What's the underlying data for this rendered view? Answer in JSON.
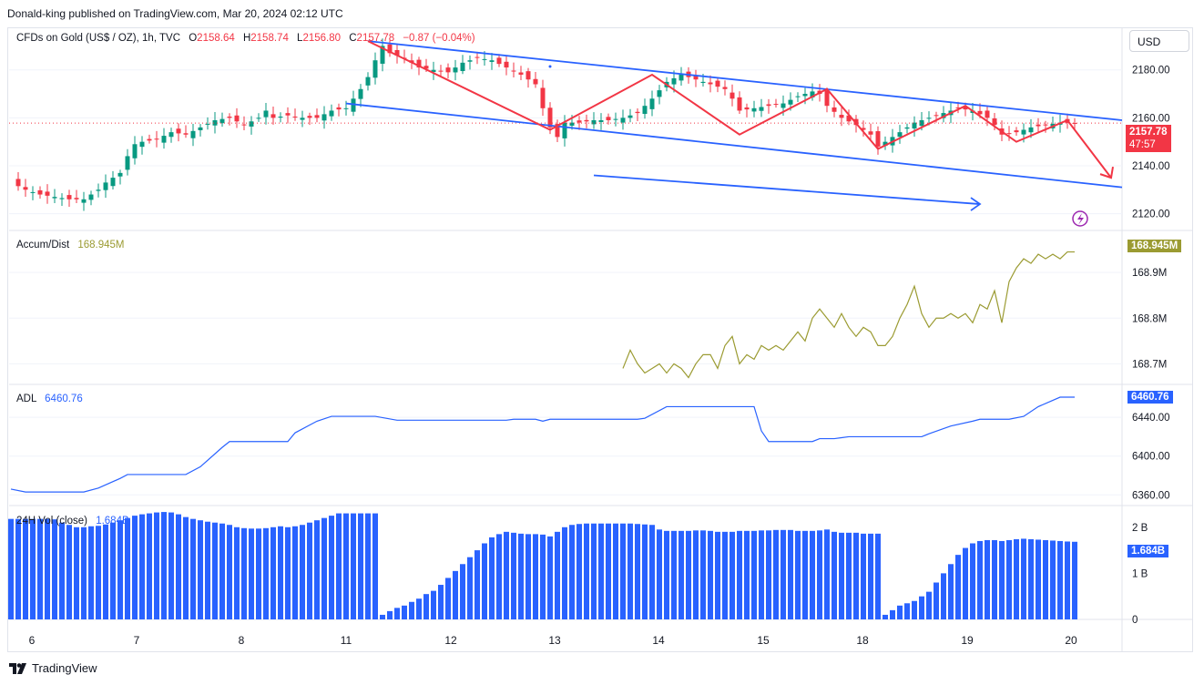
{
  "header": {
    "publisher_line": "Donald-king published on TradingView.com, Mar 20, 2024 02:12 UTC"
  },
  "currency_button": "USD",
  "main_legend": {
    "symbol": "CFDs on Gold (US$ / OZ), 1h, TVC",
    "o_label": "O",
    "o_value": "2158.64",
    "h_label": "H",
    "h_value": "2158.74",
    "l_label": "L",
    "l_value": "2156.80",
    "c_label": "C",
    "c_value": "2157.78",
    "change": "−0.87 (−0.04%)"
  },
  "price_tag": {
    "price": "2157.78",
    "countdown": "47:57"
  },
  "colors": {
    "up": "#089981",
    "down": "#f23645",
    "channel": "#2962ff",
    "zigzag": "#f23645",
    "accum": "#9b9b32",
    "adl": "#2962ff",
    "vol": "#2962ff",
    "grid": "#f0f3fa",
    "text": "#131722",
    "axis_text": "#131722"
  },
  "footer": {
    "brand": "TradingView",
    "logo_icon": "tradingview-logo-icon"
  },
  "chart_data": [
    {
      "type": "candlestick",
      "title": "CFDs on Gold (US$ / OZ), 1h, TVC",
      "x_day_labels": [
        "6",
        "7",
        "8",
        "11",
        "12",
        "13",
        "14",
        "15",
        "18",
        "19",
        "20"
      ],
      "y_axis": {
        "ticks": [
          2120,
          2140,
          2160,
          2180
        ],
        "tick_labels": [
          "2120.00",
          "2140.00",
          "2160.00",
          "2180.00"
        ],
        "ylim": [
          2113,
          2197
        ]
      },
      "last_price": 2157.78,
      "close_path": [
        [
          0,
          2133
        ],
        [
          2,
          2130
        ],
        [
          4,
          2128
        ],
        [
          6,
          2127
        ],
        [
          8,
          2126
        ],
        [
          10,
          2126
        ],
        [
          12,
          2130
        ],
        [
          13,
          2133
        ],
        [
          15,
          2137
        ],
        [
          16,
          2144
        ],
        [
          17,
          2149
        ],
        [
          18,
          2150
        ],
        [
          20,
          2151
        ],
        [
          22,
          2154
        ],
        [
          24,
          2153
        ],
        [
          26,
          2156
        ],
        [
          28,
          2159
        ],
        [
          30,
          2160
        ],
        [
          32,
          2157
        ],
        [
          34,
          2160
        ],
        [
          35,
          2163
        ],
        [
          36,
          2160
        ],
        [
          38,
          2161
        ],
        [
          40,
          2160
        ],
        [
          42,
          2160
        ],
        [
          44,
          2163
        ],
        [
          46,
          2164
        ],
        [
          48,
          2172
        ],
        [
          49,
          2177
        ],
        [
          50,
          2184
        ],
        [
          51,
          2190
        ],
        [
          52,
          2187
        ],
        [
          54,
          2185
        ],
        [
          56,
          2181
        ],
        [
          58,
          2180
        ],
        [
          60,
          2179
        ],
        [
          62,
          2183
        ],
        [
          64,
          2185
        ],
        [
          66,
          2184
        ],
        [
          68,
          2181
        ],
        [
          70,
          2178
        ],
        [
          72,
          2174
        ],
        [
          73,
          2164
        ],
        [
          74,
          2156
        ],
        [
          75,
          2152
        ],
        [
          76,
          2158
        ],
        [
          78,
          2158
        ],
        [
          80,
          2159
        ],
        [
          82,
          2159
        ],
        [
          84,
          2160
        ],
        [
          86,
          2162
        ],
        [
          88,
          2168
        ],
        [
          90,
          2175
        ],
        [
          92,
          2178
        ],
        [
          94,
          2176
        ],
        [
          96,
          2174
        ],
        [
          98,
          2172
        ],
        [
          99,
          2168
        ],
        [
          100,
          2163
        ],
        [
          102,
          2164
        ],
        [
          104,
          2165
        ],
        [
          106,
          2166
        ],
        [
          108,
          2169
        ],
        [
          110,
          2171
        ],
        [
          111,
          2170
        ],
        [
          112,
          2165
        ],
        [
          114,
          2160
        ],
        [
          116,
          2157
        ],
        [
          118,
          2153
        ],
        [
          119,
          2148
        ],
        [
          120,
          2150
        ],
        [
          122,
          2154
        ],
        [
          124,
          2158
        ],
        [
          126,
          2160
        ],
        [
          128,
          2162
        ],
        [
          130,
          2164
        ],
        [
          132,
          2163
        ],
        [
          134,
          2160
        ],
        [
          135,
          2157
        ],
        [
          136,
          2153
        ],
        [
          138,
          2154
        ],
        [
          140,
          2156
        ],
        [
          142,
          2157
        ],
        [
          144,
          2158
        ],
        [
          146,
          2157.78
        ]
      ],
      "channel_upper": {
        "start": [
          49,
          2192
        ],
        "end": [
          146,
          2159
        ]
      },
      "channel_lower": {
        "start": [
          46,
          2166
        ],
        "end": [
          146,
          2131
        ]
      },
      "projection_arrow": {
        "start": [
          80,
          2136
        ],
        "end": [
          133,
          2124
        ]
      },
      "zigzag": [
        [
          49,
          2192
        ],
        [
          74,
          2155
        ],
        [
          88,
          2178
        ],
        [
          100,
          2153
        ],
        [
          112,
          2172
        ],
        [
          119,
          2147
        ],
        [
          131,
          2165
        ],
        [
          138,
          2150
        ],
        [
          145,
          2159
        ],
        [
          151,
          2135
        ]
      ]
    },
    {
      "type": "line",
      "title": "Accum/Dist",
      "last_value": "168.945M",
      "y_axis": {
        "tick_labels": [
          "168.7M",
          "168.8M",
          "168.9M"
        ],
        "ticks": [
          168.7,
          168.8,
          168.9
        ],
        "ylim": [
          168.655,
          168.99
        ]
      },
      "x": [
        84,
        85,
        86,
        87,
        88,
        89,
        90,
        91,
        92,
        93,
        94,
        95,
        96,
        97,
        98,
        99,
        100,
        101,
        102,
        103,
        104,
        105,
        106,
        107,
        108,
        109,
        110,
        111,
        112,
        113,
        114,
        115,
        116,
        117,
        118,
        119,
        120,
        121,
        122,
        123,
        124,
        125,
        126,
        127,
        128,
        129,
        130,
        131,
        132,
        133,
        134,
        135,
        136,
        137,
        138,
        139,
        140,
        141,
        142,
        143,
        144,
        145,
        146
      ],
      "values": [
        168.69,
        168.73,
        168.7,
        168.68,
        168.69,
        168.7,
        168.68,
        168.7,
        168.69,
        168.67,
        168.7,
        168.72,
        168.72,
        168.69,
        168.74,
        168.76,
        168.7,
        168.72,
        168.71,
        168.74,
        168.73,
        168.74,
        168.73,
        168.75,
        168.77,
        168.75,
        168.8,
        168.82,
        168.8,
        168.78,
        168.81,
        168.78,
        168.76,
        168.78,
        168.77,
        168.74,
        168.74,
        168.76,
        168.8,
        168.83,
        168.87,
        168.81,
        168.78,
        168.8,
        168.8,
        168.81,
        168.8,
        168.81,
        168.79,
        168.83,
        168.82,
        168.86,
        168.79,
        168.88,
        168.91,
        168.93,
        168.92,
        168.94,
        168.93,
        168.94,
        168.93,
        168.945,
        168.945
      ]
    },
    {
      "type": "line",
      "title": "ADL",
      "last_value": "6460.76",
      "y_axis": {
        "tick_labels": [
          "6360.00",
          "6400.00",
          "6440.00"
        ],
        "ticks": [
          6360,
          6400,
          6440
        ],
        "ylim": [
          6349,
          6473
        ]
      },
      "x": [
        0,
        2,
        10,
        12,
        15,
        16,
        20,
        24,
        26,
        29,
        30,
        38,
        39,
        41,
        42,
        44,
        50,
        53,
        54,
        57,
        59,
        68,
        69,
        72,
        73,
        74,
        77,
        86,
        87,
        90,
        95,
        96,
        102,
        103,
        104,
        110,
        111,
        113,
        114,
        115,
        125,
        126,
        129,
        132,
        133,
        137,
        139,
        141,
        144,
        146
      ],
      "values": [
        6366,
        6363,
        6363,
        6367,
        6377,
        6381,
        6381,
        6381,
        6389,
        6409,
        6415,
        6415,
        6424,
        6432,
        6436,
        6441,
        6441,
        6437,
        6437,
        6437,
        6437,
        6437,
        6438,
        6438,
        6436,
        6438,
        6438,
        6438,
        6439,
        6451,
        6451,
        6451,
        6451,
        6426,
        6415,
        6415,
        6418,
        6418,
        6419,
        6420,
        6420,
        6423,
        6431,
        6436,
        6438,
        6438,
        6441,
        6451,
        6460.76,
        6460.76
      ]
    },
    {
      "type": "bar",
      "title": "24H Vol (close)",
      "last_value": "1.684B",
      "y_axis": {
        "tick_labels": [
          "0",
          "1 B",
          "2 B"
        ],
        "ticks": [
          0,
          1,
          2
        ],
        "ylim": [
          0,
          2.45
        ]
      },
      "x_range": [
        0,
        146
      ],
      "values_note": "billions",
      "segments": [
        {
          "from": 0,
          "to": 6,
          "values": [
            2.18,
            2.18,
            2.18,
            2.18,
            2.18,
            2.18,
            2.17
          ]
        },
        {
          "from": 7,
          "to": 14,
          "values": [
            2.1,
            2.05,
            2.0,
            2.0,
            2.02,
            2.03,
            2.06,
            2.1
          ]
        },
        {
          "from": 15,
          "to": 22,
          "values": [
            2.15,
            2.2,
            2.25,
            2.28,
            2.3,
            2.32,
            2.33,
            2.32
          ]
        },
        {
          "from": 23,
          "to": 30,
          "values": [
            2.28,
            2.22,
            2.18,
            2.15,
            2.12,
            2.1,
            2.08,
            2.05
          ]
        },
        {
          "from": 31,
          "to": 38,
          "values": [
            2.0,
            1.98,
            1.97,
            1.97,
            1.98,
            2.0,
            2.02,
            2.0
          ]
        },
        {
          "from": 39,
          "to": 45,
          "values": [
            2.02,
            2.05,
            2.1,
            2.15,
            2.2,
            2.25,
            2.3
          ]
        },
        {
          "from": 46,
          "to": 50,
          "values": [
            2.3,
            2.3,
            2.3,
            2.3,
            2.3
          ]
        },
        {
          "from": 51,
          "to": 58,
          "values": [
            0.1,
            0.18,
            0.25,
            0.3,
            0.38,
            0.45,
            0.55,
            0.62
          ]
        },
        {
          "from": 59,
          "to": 66,
          "values": [
            0.75,
            0.9,
            1.05,
            1.2,
            1.35,
            1.5,
            1.65,
            1.78
          ]
        },
        {
          "from": 67,
          "to": 73,
          "values": [
            1.85,
            1.9,
            1.88,
            1.86,
            1.85,
            1.85,
            1.84
          ]
        },
        {
          "from": 74,
          "to": 80,
          "values": [
            1.8,
            1.9,
            2.0,
            2.05,
            2.07,
            2.08,
            2.08
          ]
        },
        {
          "from": 81,
          "to": 88,
          "values": [
            2.08,
            2.08,
            2.08,
            2.08,
            2.08,
            2.07,
            2.06,
            2.05
          ]
        },
        {
          "from": 89,
          "to": 96,
          "values": [
            1.95,
            1.92,
            1.92,
            1.92,
            1.92,
            1.93,
            1.93,
            1.92
          ]
        },
        {
          "from": 97,
          "to": 104,
          "values": [
            1.9,
            1.9,
            1.9,
            1.92,
            1.92,
            1.92,
            1.93,
            1.93
          ]
        },
        {
          "from": 105,
          "to": 112,
          "values": [
            1.94,
            1.94,
            1.94,
            1.92,
            1.92,
            1.92,
            1.93,
            1.95
          ]
        },
        {
          "from": 113,
          "to": 119,
          "values": [
            1.9,
            1.88,
            1.88,
            1.88,
            1.86,
            1.86,
            1.86
          ]
        },
        {
          "from": 120,
          "to": 127,
          "values": [
            0.1,
            0.2,
            0.3,
            0.35,
            0.4,
            0.5,
            0.6,
            0.8
          ]
        },
        {
          "from": 128,
          "to": 135,
          "values": [
            1.0,
            1.2,
            1.4,
            1.55,
            1.65,
            1.7,
            1.72,
            1.72
          ]
        },
        {
          "from": 136,
          "to": 146,
          "values": [
            1.7,
            1.72,
            1.74,
            1.75,
            1.74,
            1.73,
            1.72,
            1.71,
            1.7,
            1.69,
            1.684
          ]
        }
      ]
    }
  ]
}
